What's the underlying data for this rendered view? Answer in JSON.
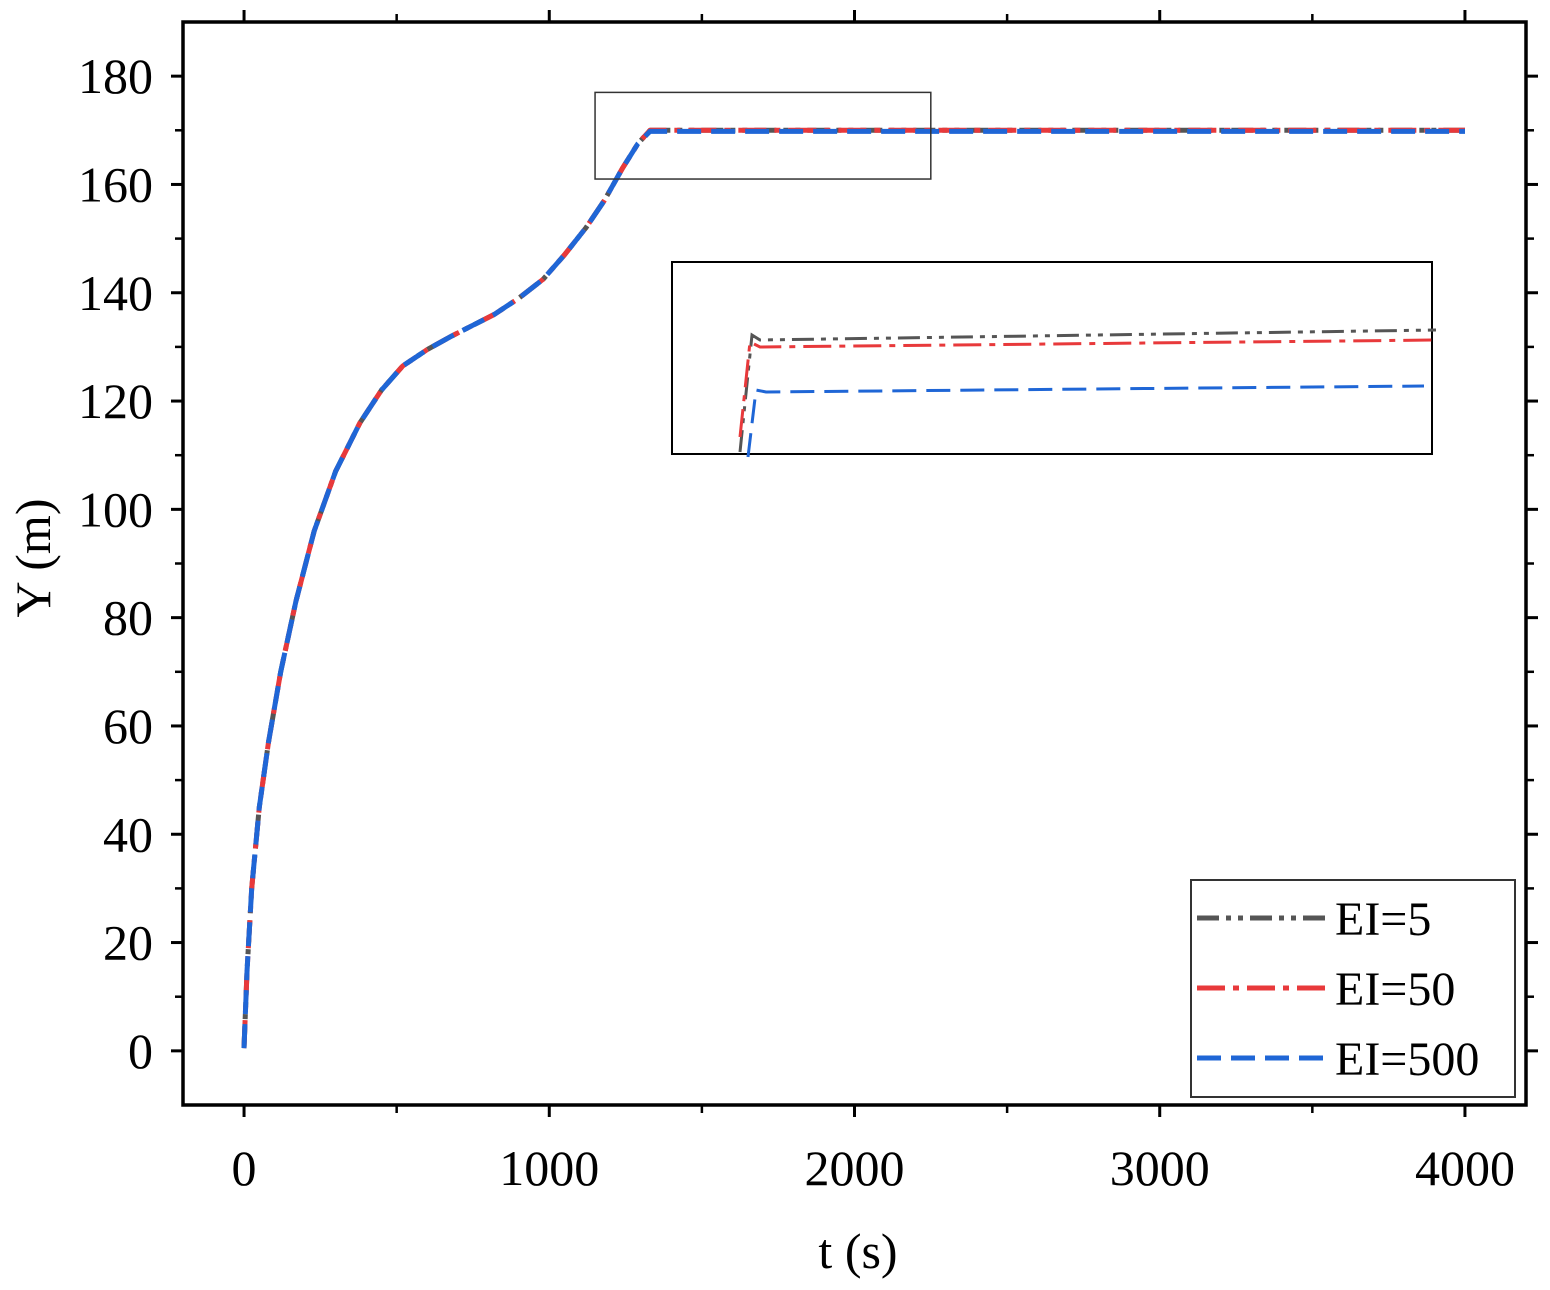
{
  "chart_data": {
    "type": "line",
    "xlabel": "t (s)",
    "ylabel": "Y (m)",
    "xlim": [
      -200,
      4200
    ],
    "ylim": [
      -10,
      190
    ],
    "x_ticks": [
      0,
      1000,
      2000,
      3000,
      4000
    ],
    "y_ticks": [
      0,
      20,
      40,
      60,
      80,
      100,
      120,
      140,
      160,
      180
    ],
    "grid": false,
    "legend_position": "bottom-right",
    "series": [
      {
        "name": "EI=5",
        "color": "#555555",
        "style": "dash-dot-dot",
        "x": [
          0,
          10,
          25,
          50,
          80,
          120,
          170,
          230,
          300,
          380,
          450,
          520,
          600,
          680,
          750,
          820,
          900,
          980,
          1050,
          1120,
          1180,
          1240,
          1290,
          1330,
          1340,
          1500,
          2000,
          2500,
          3000,
          3500,
          4000
        ],
        "y": [
          0.5,
          15,
          30,
          45,
          57,
          70,
          83,
          96,
          107,
          116,
          122,
          126.5,
          129.5,
          132,
          134,
          136,
          139,
          142.5,
          147,
          152,
          157,
          163,
          167.5,
          170,
          170,
          170,
          170,
          170,
          170,
          170,
          170
        ]
      },
      {
        "name": "EI=50",
        "color": "#e8393b",
        "style": "dash-dot",
        "x": [
          0,
          10,
          25,
          50,
          80,
          120,
          170,
          230,
          300,
          380,
          450,
          520,
          600,
          680,
          750,
          820,
          900,
          980,
          1050,
          1120,
          1180,
          1240,
          1290,
          1330,
          1340,
          1500,
          2000,
          2500,
          3000,
          3500,
          4000
        ],
        "y": [
          0.5,
          15,
          30,
          45,
          57,
          70,
          83,
          96,
          107,
          116,
          122,
          126.5,
          129.5,
          132,
          134,
          136,
          139,
          142.5,
          147,
          152,
          157,
          163,
          167.5,
          170,
          170,
          170,
          170,
          170,
          170,
          170,
          170
        ]
      },
      {
        "name": "EI=500",
        "color": "#1f66d6",
        "style": "dash",
        "x": [
          0,
          10,
          25,
          50,
          80,
          120,
          170,
          230,
          300,
          380,
          450,
          520,
          600,
          680,
          750,
          820,
          900,
          980,
          1050,
          1120,
          1180,
          1240,
          1290,
          1330,
          1340,
          1500,
          2000,
          2500,
          3000,
          3500,
          4000
        ],
        "y": [
          0.5,
          15,
          30,
          45,
          57,
          70,
          83,
          96,
          107,
          116,
          122,
          126.5,
          129.5,
          132,
          134,
          136,
          139,
          142.5,
          147,
          152,
          157,
          163,
          167.5,
          169.8,
          169.8,
          169.8,
          169.8,
          169.8,
          169.8,
          169.8,
          169.8
        ]
      }
    ],
    "zoom_region": {
      "x": [
        1150,
        2250
      ],
      "y": [
        161,
        177
      ]
    }
  }
}
